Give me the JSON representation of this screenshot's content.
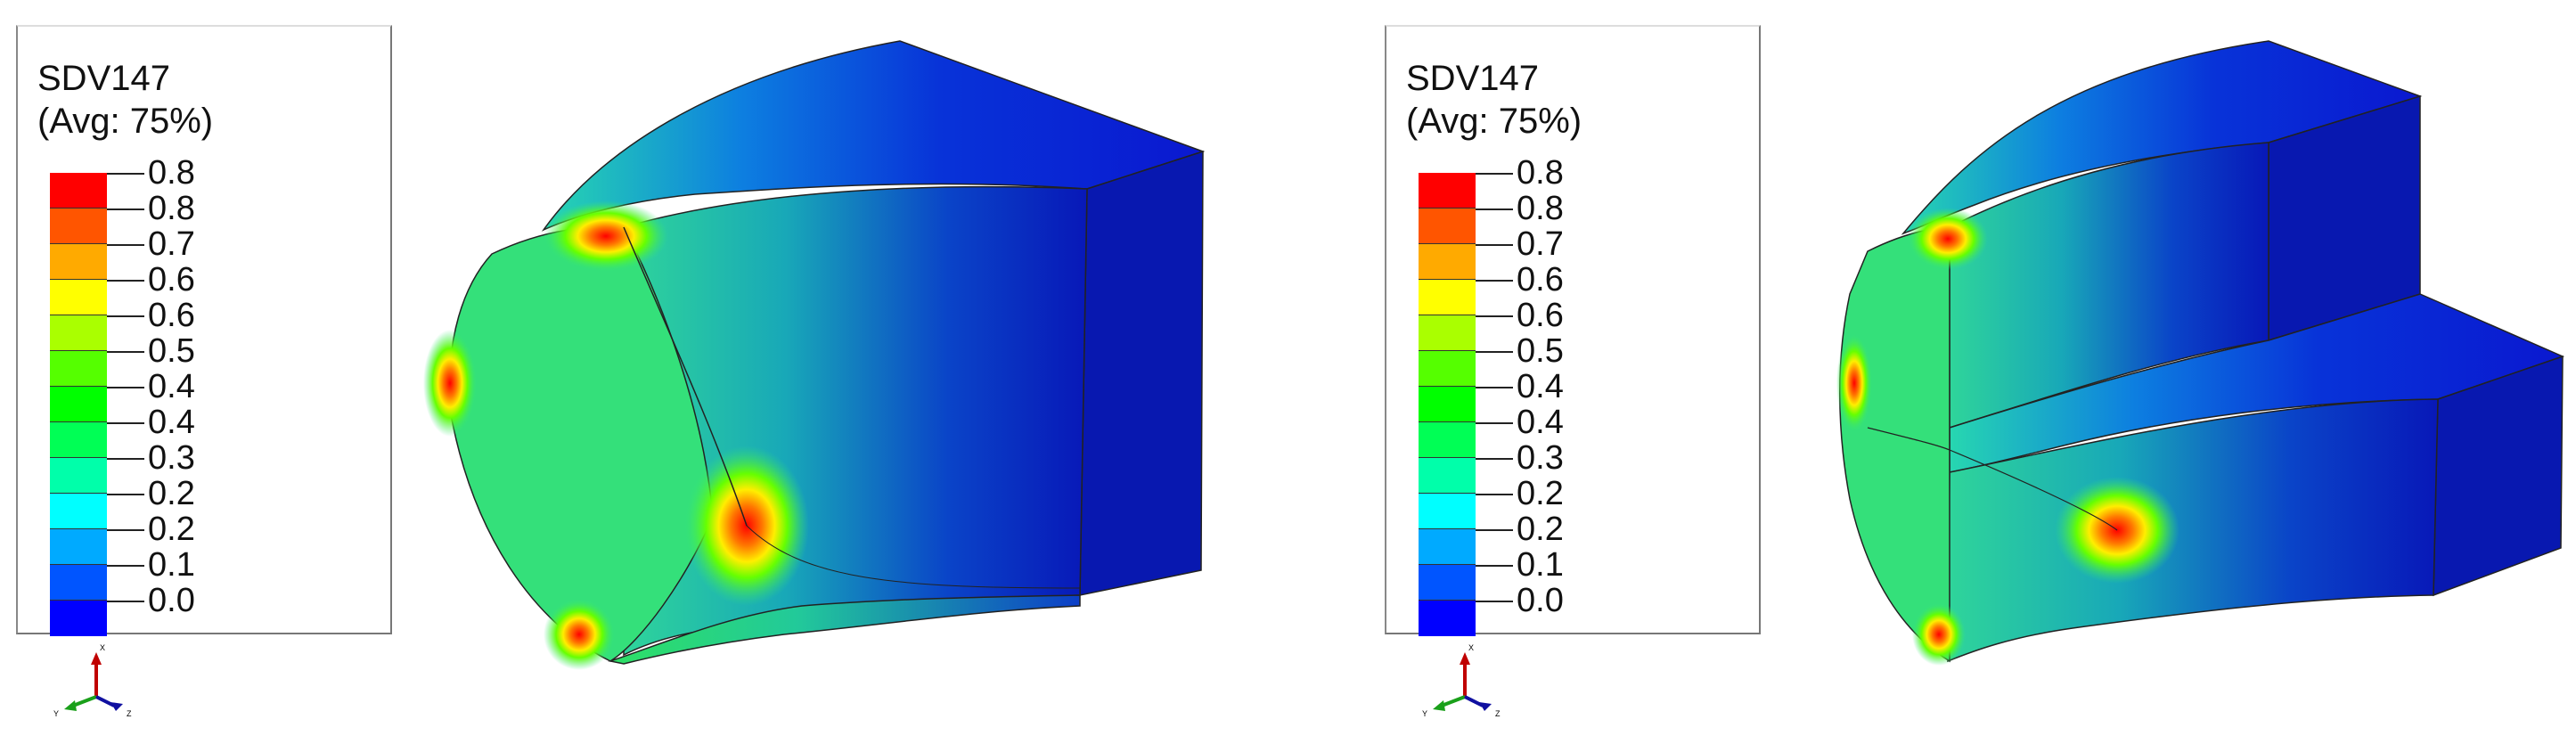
{
  "panels": [
    {
      "legend": {
        "title": "SDV147",
        "subtitle": "(Avg: 75%)",
        "ticks": [
          "0.8",
          "0.8",
          "0.7",
          "0.6",
          "0.6",
          "0.5",
          "0.4",
          "0.4",
          "0.3",
          "0.2",
          "0.2",
          "0.1",
          "0.0"
        ],
        "colors": [
          "#ff0000",
          "#ff5500",
          "#ffaa00",
          "#ffff00",
          "#aaff00",
          "#55ff00",
          "#00ff00",
          "#00ff55",
          "#00ffaa",
          "#00ffff",
          "#00aaff",
          "#0055ff",
          "#0000ff"
        ]
      },
      "triad": {
        "x": "X",
        "y": "Y",
        "z": "Z"
      }
    },
    {
      "legend": {
        "title": "SDV147",
        "subtitle": "(Avg: 75%)",
        "ticks": [
          "0.8",
          "0.8",
          "0.7",
          "0.6",
          "0.6",
          "0.5",
          "0.4",
          "0.4",
          "0.3",
          "0.2",
          "0.2",
          "0.1",
          "0.0"
        ],
        "colors": [
          "#ff0000",
          "#ff5500",
          "#ffaa00",
          "#ffff00",
          "#aaff00",
          "#55ff00",
          "#00ff00",
          "#00ff55",
          "#00ffaa",
          "#00ffff",
          "#00aaff",
          "#0055ff",
          "#0000ff"
        ]
      },
      "triad": {
        "x": "X",
        "y": "Y",
        "z": "Z"
      }
    }
  ]
}
